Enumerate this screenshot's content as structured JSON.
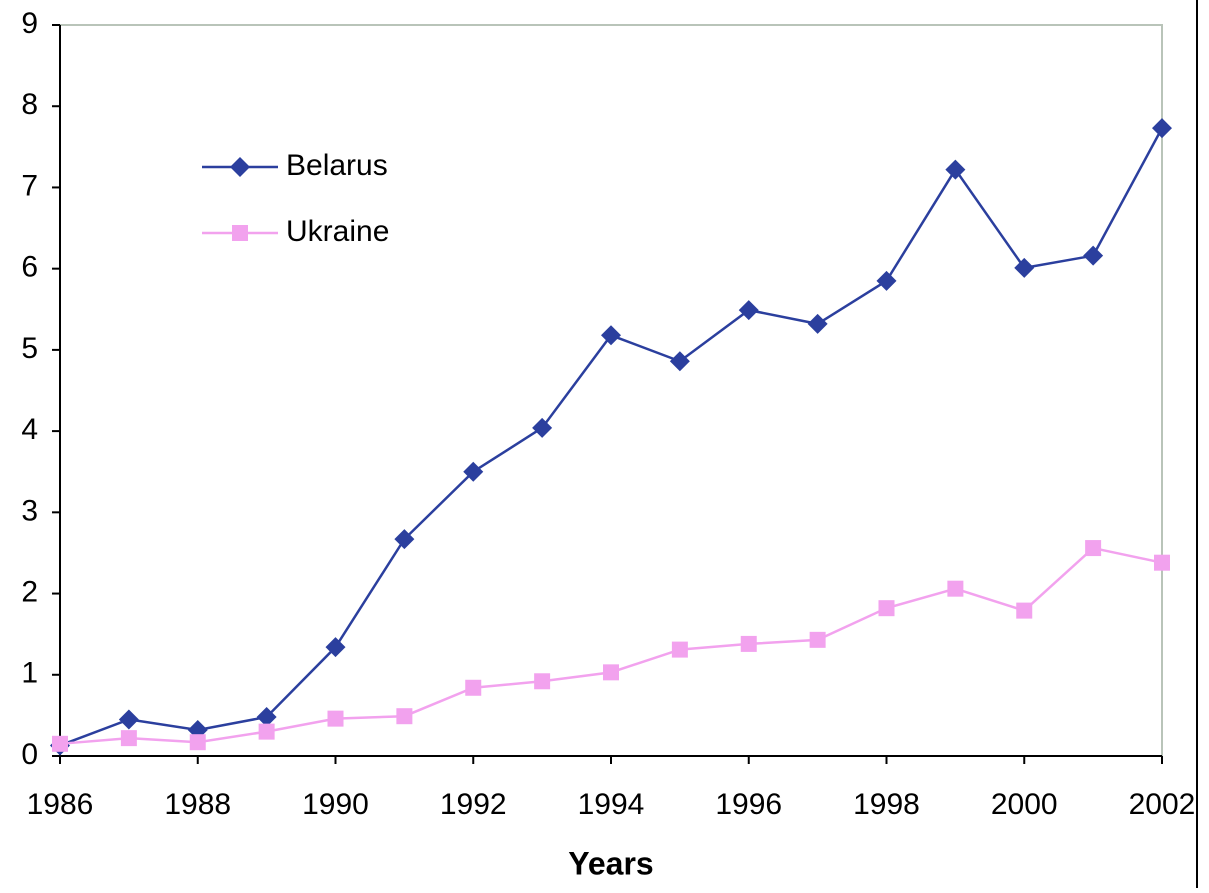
{
  "chart_data": {
    "type": "line",
    "x_label": "Years",
    "x": [
      1986,
      1987,
      1988,
      1989,
      1990,
      1991,
      1992,
      1993,
      1994,
      1995,
      1996,
      1997,
      1998,
      1999,
      2000,
      2001,
      2002
    ],
    "series": [
      {
        "name": "Belarus",
        "color": "#2b3f9e",
        "marker": "diamond",
        "values": [
          0.13,
          0.45,
          0.32,
          0.48,
          1.34,
          2.67,
          3.5,
          4.04,
          5.18,
          4.86,
          5.49,
          5.32,
          5.85,
          7.22,
          6.01,
          6.16,
          7.73
        ]
      },
      {
        "name": "Ukraine",
        "color": "#f2a2ee",
        "marker": "square",
        "values": [
          0.15,
          0.22,
          0.17,
          0.3,
          0.46,
          0.49,
          0.84,
          0.92,
          1.03,
          1.31,
          1.38,
          1.43,
          1.82,
          2.06,
          1.79,
          2.56,
          2.38
        ]
      }
    ],
    "xlim": [
      1986,
      2002
    ],
    "xticks": [
      1986,
      1988,
      1990,
      1992,
      1994,
      1996,
      1998,
      2000,
      2002
    ],
    "ylim": [
      0,
      9
    ],
    "yticks": [
      0,
      1,
      2,
      3,
      4,
      5,
      6,
      7,
      8,
      9
    ],
    "legend": "upper left"
  }
}
